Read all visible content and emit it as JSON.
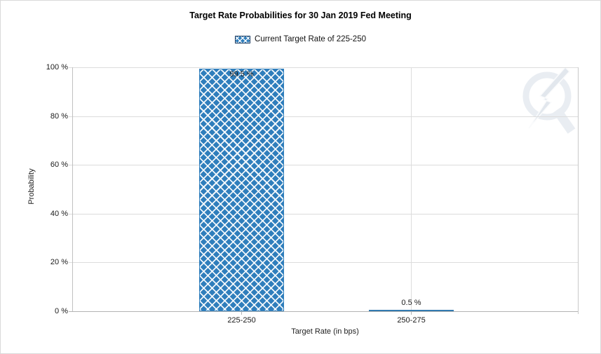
{
  "page": {
    "background": "#ffffff",
    "border_color": "#d9d9d9"
  },
  "header": {
    "title": "Target Rate Probabilities for 30 Jan 2019 Fed Meeting"
  },
  "legend": {
    "label": "Current Target Rate of 225-250",
    "swatch_fill": "#2f7ebc",
    "swatch_border": "#17375d",
    "swatch_pattern": "white-diagonal-crosshatch"
  },
  "watermark": {
    "icon": "quikstrike-logo-watermark",
    "color": "#e9edf2"
  },
  "chart_data": {
    "type": "bar",
    "title": "Target Rate Probabilities for 30 Jan 2019 Fed Meeting",
    "categories": [
      "225-250",
      "250-275"
    ],
    "values": [
      99.5,
      0.5
    ],
    "value_labels": [
      "99.5 %",
      "0.5 %"
    ],
    "xlabel": "Target Rate (in bps)",
    "ylabel": "Probability",
    "ylim": [
      0,
      100
    ],
    "yticks": [
      {
        "pct": 0,
        "label": "0 %"
      },
      {
        "pct": 20,
        "label": "20 %"
      },
      {
        "pct": 40,
        "label": "40 %"
      },
      {
        "pct": 60,
        "label": "60 %"
      },
      {
        "pct": 80,
        "label": "80 %"
      },
      {
        "pct": 100,
        "label": "100 %"
      }
    ],
    "legend_entries": [
      "Current Target Rate of 225-250"
    ],
    "legend_position": "top",
    "grid": true,
    "bar_color": "#2f7ebc",
    "bar_pattern": "white diagonal crosshatch",
    "gridline_color": "#dcdcdc",
    "axis_color": "#b3b3b3"
  }
}
